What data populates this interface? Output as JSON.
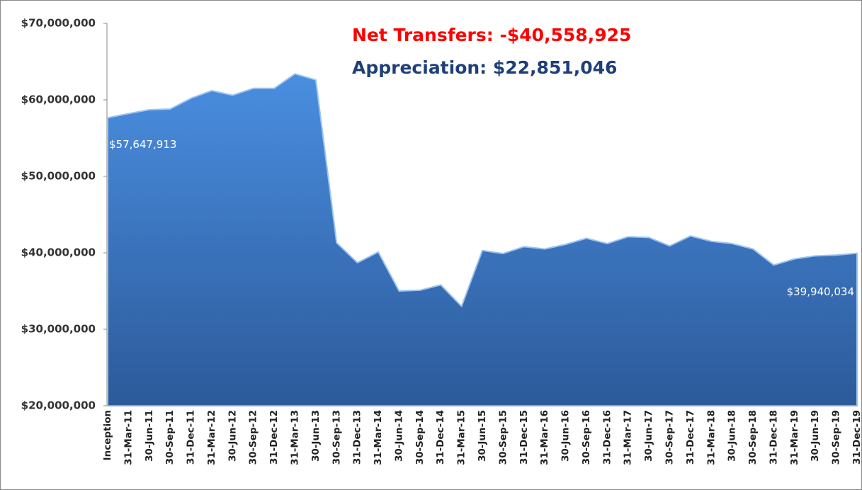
{
  "chart_data": {
    "type": "area",
    "categories": [
      "Inception",
      "31-Mar-11",
      "30-Jun-11",
      "30-Sep-11",
      "31-Dec-11",
      "31-Mar-12",
      "30-Jun-12",
      "30-Sep-12",
      "31-Dec-12",
      "31-Mar-13",
      "30-Jun-13",
      "30-Sep-13",
      "31-Dec-13",
      "31-Mar-14",
      "30-Jun-14",
      "30-Sep-14",
      "31-Dec-14",
      "31-Mar-15",
      "30-Jun-15",
      "30-Sep-15",
      "31-Dec-15",
      "31-Mar-16",
      "30-Jun-16",
      "30-Sep-16",
      "31-Dec-16",
      "31-Mar-17",
      "30-Jun-17",
      "30-Sep-17",
      "31-Dec-17",
      "31-Mar-18",
      "30-Jun-18",
      "30-Sep-18",
      "31-Dec-18",
      "31-Mar-19",
      "30-Jun-19",
      "30-Sep-19",
      "31-Dec-19"
    ],
    "values": [
      57647913,
      58200000,
      58700000,
      58800000,
      60200000,
      61200000,
      60600000,
      61500000,
      61500000,
      63400000,
      62600000,
      41300000,
      38700000,
      40100000,
      35000000,
      35100000,
      35800000,
      33000000,
      40300000,
      39900000,
      40800000,
      40500000,
      41100000,
      41900000,
      41200000,
      42100000,
      42000000,
      40900000,
      42200000,
      41500000,
      41200000,
      40500000,
      38400000,
      39200000,
      39600000,
      39700000,
      39940034
    ],
    "value_labels": [
      "$57,647,913",
      null,
      null,
      null,
      null,
      null,
      null,
      null,
      null,
      null,
      null,
      null,
      null,
      null,
      null,
      null,
      null,
      null,
      null,
      null,
      null,
      null,
      null,
      null,
      null,
      null,
      null,
      null,
      null,
      null,
      null,
      null,
      null,
      null,
      null,
      null,
      "$39,940,034"
    ],
    "color": "#3f7bc8",
    "ylim": [
      20000000,
      70000000
    ],
    "yticks": [
      {
        "value": 20000000,
        "label": "$20,000,000"
      },
      {
        "value": 30000000,
        "label": "$30,000,000"
      },
      {
        "value": 40000000,
        "label": "$40,000,000"
      },
      {
        "value": 50000000,
        "label": "$50,000,000"
      },
      {
        "value": 60000000,
        "label": "$60,000,000"
      },
      {
        "value": 70000000,
        "label": "$70,000,000"
      }
    ],
    "annotations": [
      {
        "text": "Net Transfers: -$40,558,925",
        "color": "#ff0000"
      },
      {
        "text": "Appreciation: $22,851,046",
        "color": "#1f3f78"
      }
    ]
  }
}
